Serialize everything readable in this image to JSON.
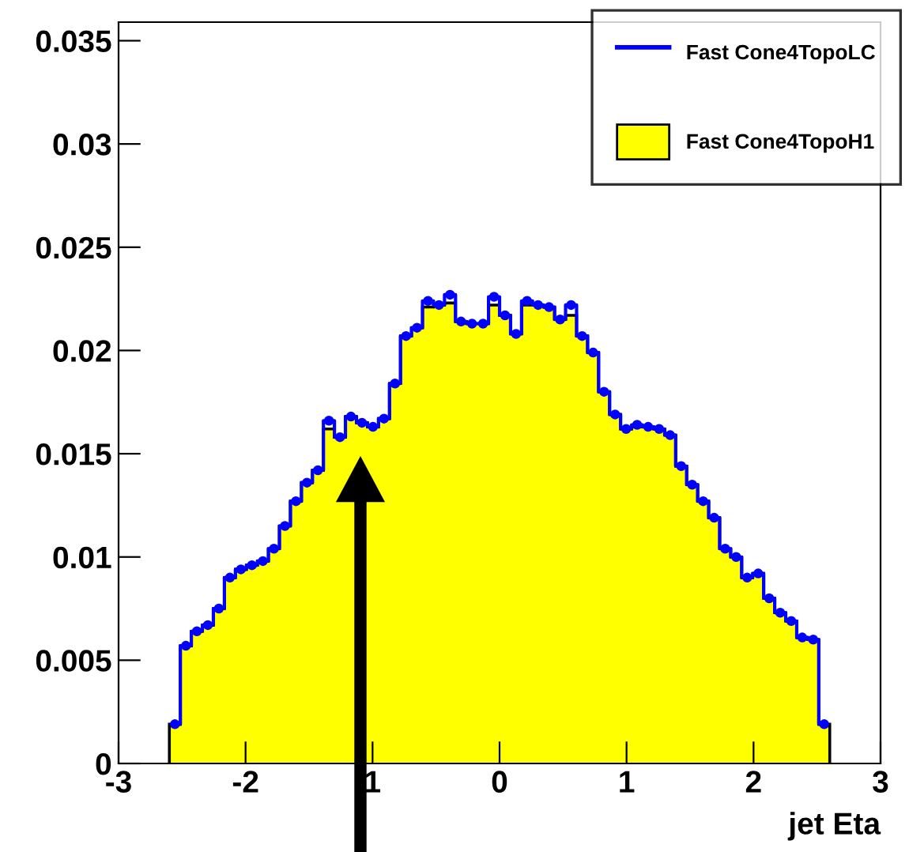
{
  "chart_data": {
    "type": "histogram",
    "xlabel": "jet Eta",
    "bins": [
      -2.6,
      -2.5133,
      -2.4267,
      -2.34,
      -2.2533,
      -2.1667,
      -2.08,
      -1.9933,
      -1.9067,
      -1.82,
      -1.7333,
      -1.6467,
      -1.56,
      -1.4733,
      -1.3867,
      -1.3,
      -1.2133,
      -1.1267,
      -1.04,
      -0.9533,
      -0.8667,
      -0.78,
      -0.6933,
      -0.6067,
      -0.52,
      -0.4333,
      -0.3467,
      -0.26,
      -0.1733,
      -0.0867,
      0,
      0.0867,
      0.1733,
      0.26,
      0.3467,
      0.4333,
      0.52,
      0.6067,
      0.6933,
      0.78,
      0.8667,
      0.9533,
      1.04,
      1.1267,
      1.2133,
      1.3,
      1.3867,
      1.4733,
      1.56,
      1.6467,
      1.7333,
      1.82,
      1.9067,
      1.9933,
      2.08,
      2.1667,
      2.2533,
      2.34,
      2.4267,
      2.5133,
      2.6
    ],
    "series": [
      {
        "name": "Fast Cone4TopoLC",
        "type": "step",
        "color": "#0000ff",
        "marker": "circle",
        "x": [
          -2.5567,
          -2.47,
          -2.3833,
          -2.2967,
          -2.21,
          -2.1233,
          -2.0367,
          -1.95,
          -1.8633,
          -1.7767,
          -1.69,
          -1.6033,
          -1.5167,
          -1.43,
          -1.3433,
          -1.2567,
          -1.17,
          -1.0833,
          -0.9967,
          -0.91,
          -0.8233,
          -0.7367,
          -0.65,
          -0.5633,
          -0.4767,
          -0.39,
          -0.3033,
          -0.2167,
          -0.13,
          -0.0433,
          0.0433,
          0.13,
          0.2167,
          0.3033,
          0.39,
          0.4767,
          0.5633,
          0.65,
          0.7367,
          0.8233,
          0.91,
          0.9967,
          1.0833,
          1.17,
          1.2567,
          1.3433,
          1.43,
          1.5167,
          1.6033,
          1.69,
          1.7767,
          1.8633,
          1.95,
          2.0367,
          2.1233,
          2.21,
          2.2967,
          2.3833,
          2.47,
          2.5567
        ],
        "values": [
          0.0019,
          0.0057,
          0.0064,
          0.0067,
          0.0075,
          0.009,
          0.0094,
          0.0096,
          0.0098,
          0.0104,
          0.0115,
          0.0127,
          0.0136,
          0.0142,
          0.0166,
          0.0158,
          0.0168,
          0.0165,
          0.0163,
          0.0167,
          0.0184,
          0.0207,
          0.0211,
          0.0224,
          0.0222,
          0.0227,
          0.0214,
          0.0213,
          0.0213,
          0.0226,
          0.0217,
          0.0208,
          0.0224,
          0.0222,
          0.0221,
          0.0215,
          0.0222,
          0.0207,
          0.0199,
          0.018,
          0.0169,
          0.0162,
          0.0164,
          0.0163,
          0.0162,
          0.0159,
          0.0144,
          0.0135,
          0.0127,
          0.0119,
          0.0104,
          0.01,
          0.009,
          0.0092,
          0.008,
          0.0073,
          0.0069,
          0.0061,
          0.006,
          0.0019
        ]
      },
      {
        "name": "Fast Cone4TopoH1",
        "color": "#ffff00",
        "values": [
          0.0019,
          0.0057,
          0.0064,
          0.0067,
          0.0075,
          0.009,
          0.0094,
          0.0096,
          0.0098,
          0.0104,
          0.0115,
          0.0127,
          0.0136,
          0.0142,
          0.0162,
          0.0158,
          0.0168,
          0.0165,
          0.0163,
          0.0167,
          0.0184,
          0.0207,
          0.0211,
          0.0221,
          0.0222,
          0.0223,
          0.0214,
          0.0213,
          0.0213,
          0.0222,
          0.0217,
          0.0208,
          0.0222,
          0.0222,
          0.0221,
          0.0215,
          0.0217,
          0.0207,
          0.0199,
          0.018,
          0.0169,
          0.0162,
          0.0163,
          0.0163,
          0.0162,
          0.0159,
          0.0144,
          0.0135,
          0.0127,
          0.0119,
          0.0104,
          0.01,
          0.009,
          0.0092,
          0.008,
          0.0073,
          0.0069,
          0.0061,
          0.006,
          0.0019
        ]
      }
    ],
    "xlim": [
      -3,
      3
    ],
    "xticks": [
      -3,
      -2,
      {
        "value": -1,
        "label": "1"
      },
      0,
      1,
      2,
      3
    ],
    "ylim": [
      0,
      0.0359
    ],
    "yticks": [
      0,
      0.005,
      0.01,
      0.015,
      0.02,
      0.025,
      0.03,
      0.035
    ],
    "legend": "top right",
    "grid": false
  }
}
